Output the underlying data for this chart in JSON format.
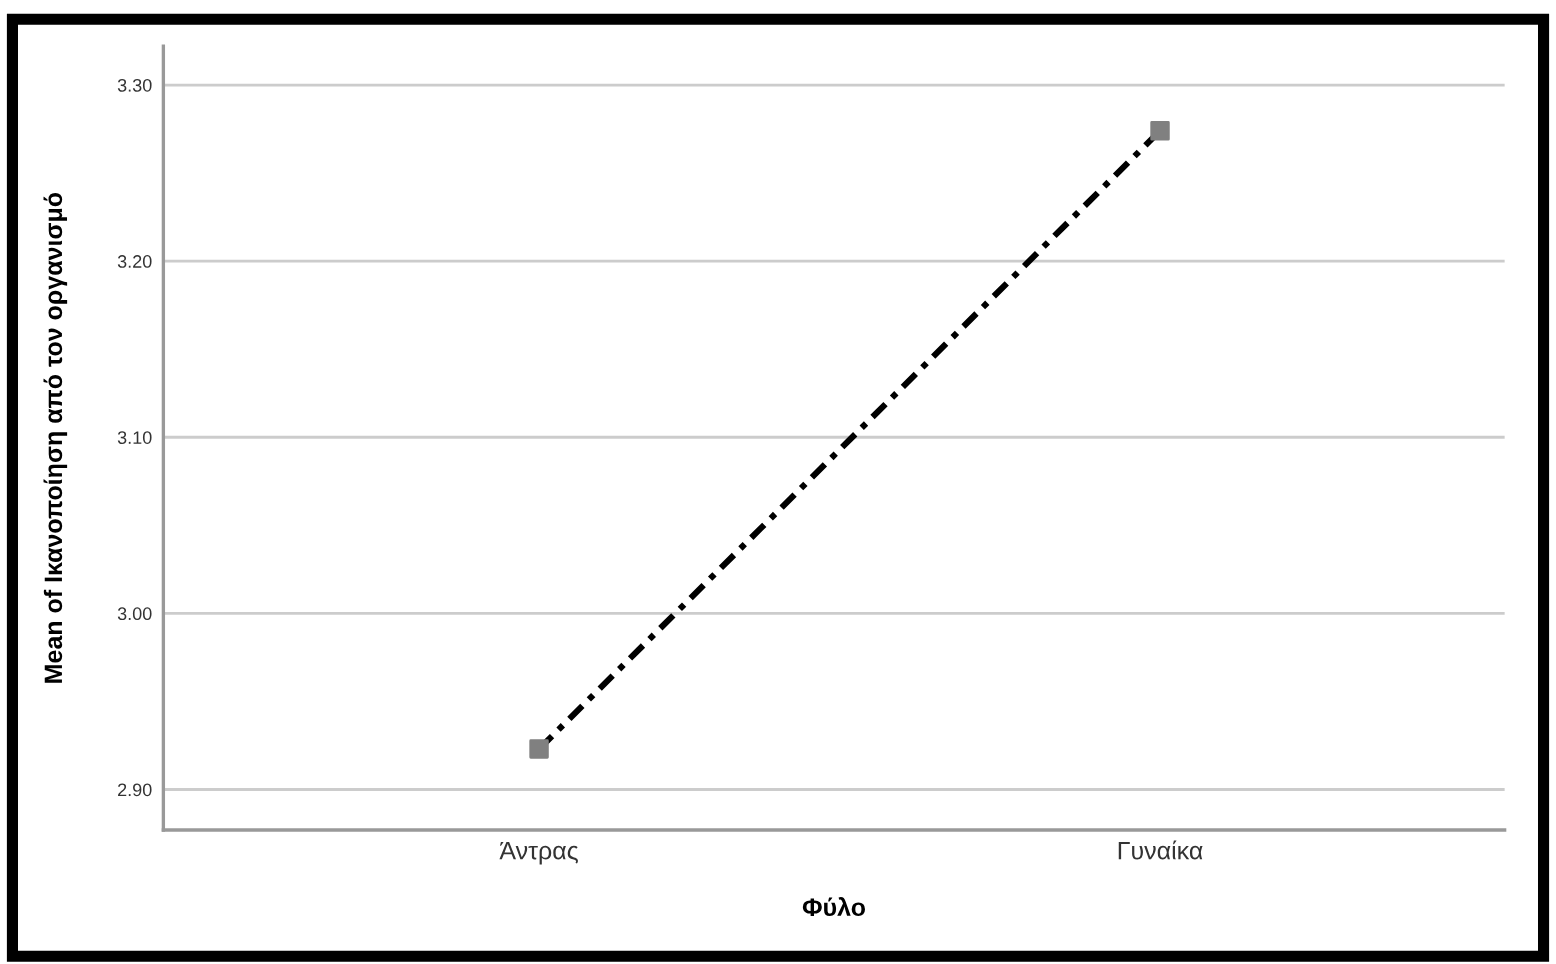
{
  "chart_data": {
    "type": "line",
    "xlabel": "Φύλο",
    "ylabel": "Mean of Ικανοποίηση από τον οργανισμό",
    "categories": [
      "Άντρας",
      "Γυναίκα"
    ],
    "series": [
      {
        "color": "#000000",
        "values": [
          2.923,
          3.274
        ]
      }
    ],
    "ylim": [
      2.877,
      3.322
    ],
    "yticks": [
      {
        "value": 2.9,
        "label": "2.90"
      },
      {
        "value": 3.0,
        "label": "3.00"
      },
      {
        "value": 3.1,
        "label": "3.10"
      },
      {
        "value": 3.2,
        "label": "3.20"
      },
      {
        "value": 3.3,
        "label": "3.30"
      }
    ],
    "grid": "y",
    "marker": "square",
    "line_style": "dashed",
    "legend": false
  }
}
